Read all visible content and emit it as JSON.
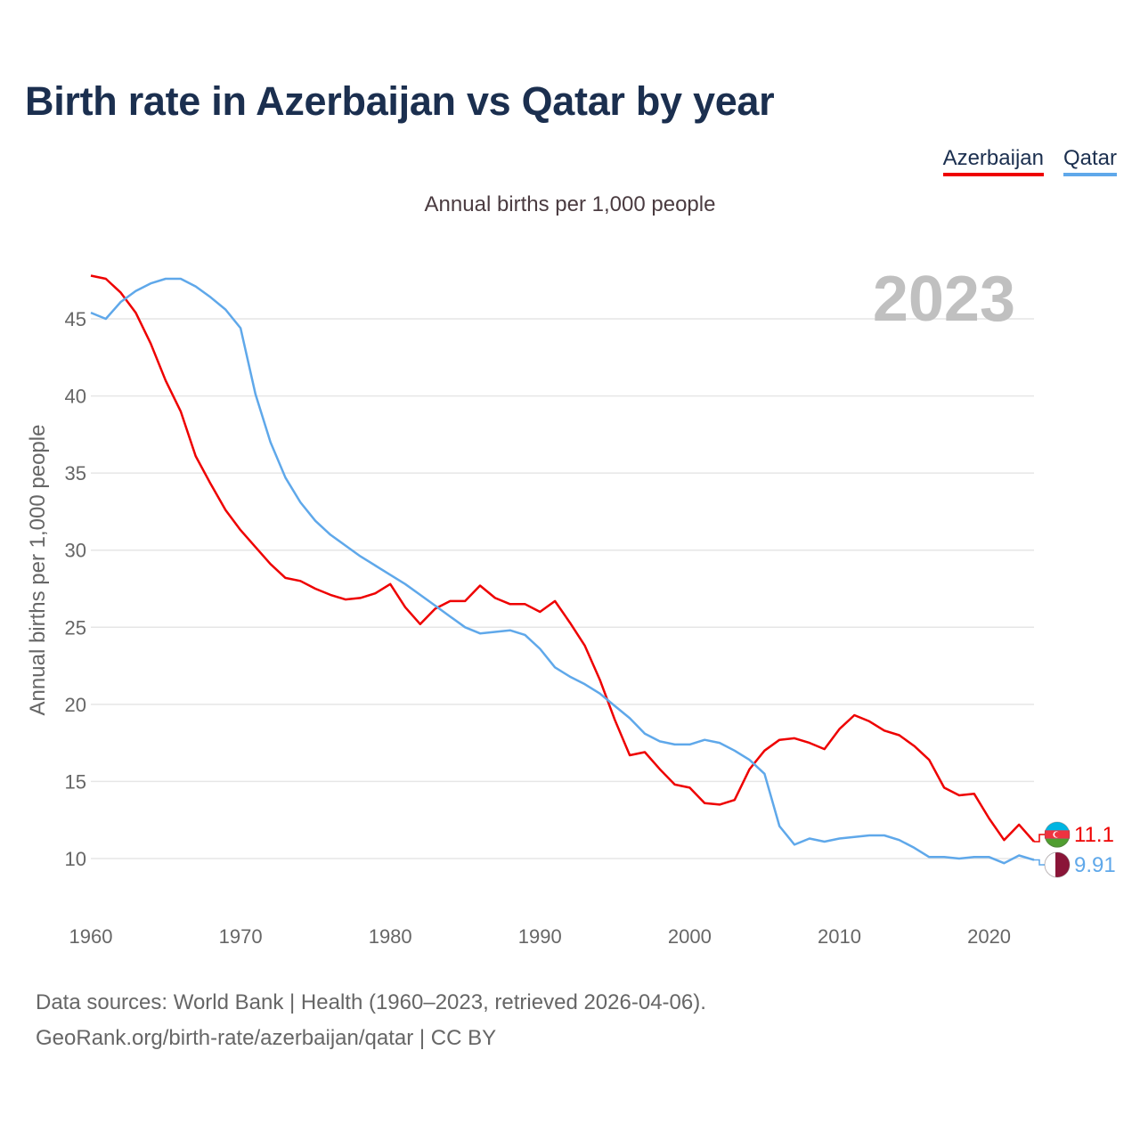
{
  "chart_data": {
    "type": "line",
    "title": "Birth rate in Azerbaijan vs Qatar by year",
    "subtitle": "Annual births per 1,000 people",
    "xlabel": "",
    "ylabel": "Annual births per 1,000 people",
    "xlim": [
      1960,
      2023
    ],
    "ylim": [
      7,
      48
    ],
    "yticks": [
      10,
      15,
      20,
      25,
      30,
      35,
      40,
      45
    ],
    "xticks": [
      1960,
      1970,
      1980,
      1990,
      2000,
      2010,
      2020
    ],
    "year_label": "2023",
    "x": [
      1960,
      1961,
      1962,
      1963,
      1964,
      1965,
      1966,
      1967,
      1968,
      1969,
      1970,
      1971,
      1972,
      1973,
      1974,
      1975,
      1976,
      1977,
      1978,
      1979,
      1980,
      1981,
      1982,
      1983,
      1984,
      1985,
      1986,
      1987,
      1988,
      1989,
      1990,
      1991,
      1992,
      1993,
      1994,
      1995,
      1996,
      1997,
      1998,
      1999,
      2000,
      2001,
      2002,
      2003,
      2004,
      2005,
      2006,
      2007,
      2008,
      2009,
      2010,
      2011,
      2012,
      2013,
      2014,
      2015,
      2016,
      2017,
      2018,
      2019,
      2020,
      2021,
      2022,
      2023
    ],
    "series": [
      {
        "name": "Azerbaijan",
        "color": "#ee0000",
        "end_label": "11.1",
        "flag_icon": "azerbaijan-flag-icon",
        "values": [
          47.8,
          47.6,
          46.7,
          45.4,
          43.4,
          41.0,
          39.0,
          36.1,
          34.3,
          32.6,
          31.3,
          30.2,
          29.1,
          28.2,
          28.0,
          27.5,
          27.1,
          26.8,
          26.9,
          27.2,
          27.8,
          26.3,
          25.2,
          26.2,
          26.7,
          26.7,
          27.7,
          26.9,
          26.5,
          26.5,
          26.0,
          26.7,
          25.3,
          23.8,
          21.6,
          19.0,
          16.7,
          16.9,
          15.8,
          14.8,
          14.6,
          13.6,
          13.5,
          13.8,
          15.8,
          17.0,
          17.7,
          17.8,
          17.5,
          17.1,
          18.4,
          19.3,
          18.9,
          18.3,
          18.0,
          17.3,
          16.4,
          14.6,
          14.1,
          14.2,
          12.6,
          11.2,
          12.2,
          11.1
        ]
      },
      {
        "name": "Qatar",
        "color": "#5fa8ea",
        "end_label": "9.91",
        "flag_icon": "qatar-flag-icon",
        "values": [
          45.4,
          45.0,
          46.1,
          46.8,
          47.3,
          47.6,
          47.6,
          47.1,
          46.4,
          45.6,
          44.4,
          40.1,
          37.0,
          34.7,
          33.1,
          31.9,
          31.0,
          30.3,
          29.6,
          29.0,
          28.4,
          27.8,
          27.1,
          26.4,
          25.7,
          25.0,
          24.6,
          24.7,
          24.8,
          24.5,
          23.6,
          22.4,
          21.8,
          21.3,
          20.7,
          19.9,
          19.1,
          18.1,
          17.6,
          17.4,
          17.4,
          17.7,
          17.5,
          17.0,
          16.4,
          15.5,
          12.1,
          10.9,
          11.3,
          11.1,
          11.3,
          11.4,
          11.5,
          11.5,
          11.2,
          10.7,
          10.1,
          10.1,
          10.0,
          10.1,
          10.1,
          9.7,
          10.2,
          9.91
        ]
      }
    ]
  },
  "footer": {
    "line1": "Data sources: World Bank | Health (1960–2023, retrieved 2026-04-06).",
    "line2": "GeoRank.org/birth-rate/azerbaijan/qatar | CC BY"
  }
}
